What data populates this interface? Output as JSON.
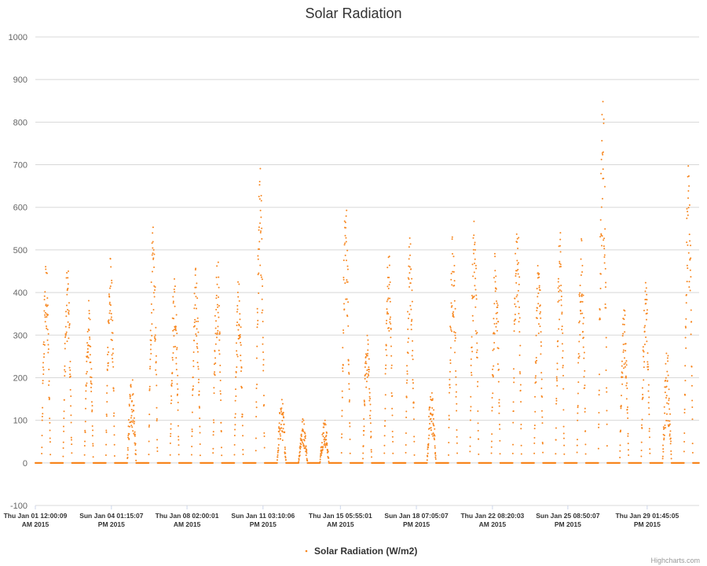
{
  "chart_data": {
    "type": "scatter",
    "title": "Solar Radiation",
    "xlabel": "",
    "ylabel": "",
    "ylim": [
      -100,
      1000
    ],
    "yticks": [
      -100,
      0,
      100,
      200,
      300,
      400,
      500,
      600,
      700,
      800,
      900,
      1000
    ],
    "grid": true,
    "legend_position": "bottom-center",
    "xlim": [
      "2015-01-01 00:00:00",
      "2015-01-31 23:59:59"
    ],
    "xticks": [
      {
        "value": "2015-01-01 00:00:09",
        "line1": "Thu Jan 01 12:00:09",
        "line2": "AM 2015"
      },
      {
        "value": "2015-01-04 13:15:07",
        "line1": "Sun Jan 04 01:15:07",
        "line2": "PM 2015"
      },
      {
        "value": "2015-01-08 02:00:01",
        "line1": "Thu Jan 08 02:00:01",
        "line2": "AM 2015"
      },
      {
        "value": "2015-01-11 15:10:06",
        "line1": "Sun Jan 11 03:10:06",
        "line2": "PM 2015"
      },
      {
        "value": "2015-01-15 05:55:01",
        "line1": "Thu Jan 15 05:55:01",
        "line2": "AM 2015"
      },
      {
        "value": "2015-01-18 19:05:07",
        "line1": "Sun Jan 18 07:05:07",
        "line2": "PM 2015"
      },
      {
        "value": "2015-01-22 08:20:03",
        "line1": "Thu Jan 22 08:20:03",
        "line2": "AM 2015"
      },
      {
        "value": "2015-01-25 20:50:07",
        "line1": "Sun Jan 25 08:50:07",
        "line2": "PM 2015"
      },
      {
        "value": "2015-01-29 13:45:05",
        "line1": "Thu Jan 29 01:45:05",
        "line2": "PM 2015"
      }
    ],
    "series": [
      {
        "name": "Solar Radiation (W/m2)",
        "color": "#f7861e",
        "daily_peaks": [
          {
            "date": "2015-01-01",
            "peak": 482
          },
          {
            "date": "2015-01-02",
            "peak": 474
          },
          {
            "date": "2015-01-03",
            "peak": 386
          },
          {
            "date": "2015-01-04",
            "peak": 493
          },
          {
            "date": "2015-01-05",
            "peak": 218
          },
          {
            "date": "2015-01-06",
            "peak": 557
          },
          {
            "date": "2015-01-07",
            "peak": 466
          },
          {
            "date": "2015-01-08",
            "peak": 466
          },
          {
            "date": "2015-01-09",
            "peak": 500
          },
          {
            "date": "2015-01-10",
            "peak": 440
          },
          {
            "date": "2015-01-11",
            "peak": 697
          },
          {
            "date": "2015-01-12",
            "peak": 155
          },
          {
            "date": "2015-01-13",
            "peak": 108
          },
          {
            "date": "2015-01-14",
            "peak": 108
          },
          {
            "date": "2015-01-15",
            "peak": 632
          },
          {
            "date": "2015-01-16",
            "peak": 306
          },
          {
            "date": "2015-01-17",
            "peak": 520
          },
          {
            "date": "2015-01-18",
            "peak": 552
          },
          {
            "date": "2015-01-19",
            "peak": 180
          },
          {
            "date": "2015-01-20",
            "peak": 553
          },
          {
            "date": "2015-01-21",
            "peak": 583
          },
          {
            "date": "2015-01-22",
            "peak": 530
          },
          {
            "date": "2015-01-23",
            "peak": 620
          },
          {
            "date": "2015-01-24",
            "peak": 502
          },
          {
            "date": "2015-01-25",
            "peak": 548
          },
          {
            "date": "2015-01-26",
            "peak": 535
          },
          {
            "date": "2015-01-27",
            "peak": 884
          },
          {
            "date": "2015-01-28",
            "peak": 370
          },
          {
            "date": "2015-01-29",
            "peak": 435
          },
          {
            "date": "2015-01-30",
            "peak": 272
          },
          {
            "date": "2015-01-31",
            "peak": 704
          }
        ],
        "night_value": 0
      }
    ]
  },
  "credit": "Highcharts.com"
}
